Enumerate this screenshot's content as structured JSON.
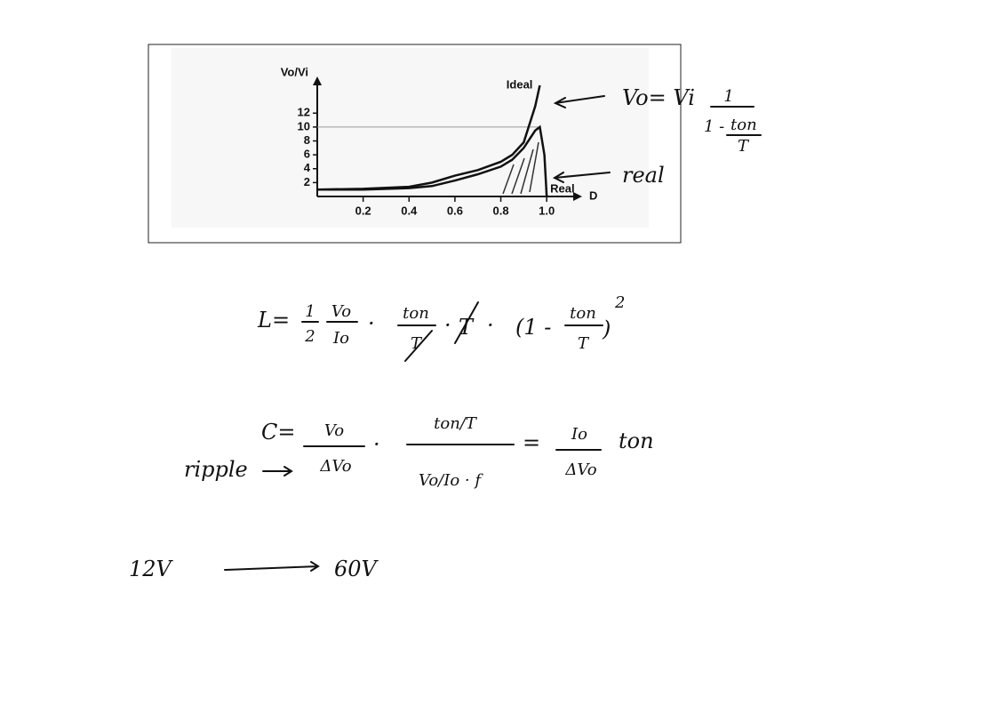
{
  "chart_data": {
    "type": "line",
    "xlabel": "D",
    "ylabel": "Vo/Vi",
    "x": [
      0,
      0.2,
      0.4,
      0.5,
      0.6,
      0.7,
      0.8,
      0.85,
      0.9,
      0.95,
      0.97,
      0.99,
      1.0
    ],
    "series": [
      {
        "name": "Ideal",
        "color": "#111111",
        "values": [
          1,
          1.1,
          1.4,
          2,
          3,
          3.8,
          5,
          6,
          7.8,
          13,
          16,
          null,
          null
        ]
      },
      {
        "name": "Real",
        "color": "#111111",
        "values": [
          1,
          1,
          1.2,
          1.5,
          2.3,
          3.2,
          4.3,
          5.3,
          7,
          9.5,
          10,
          6,
          0
        ]
      }
    ],
    "xlim": [
      0,
      1.1
    ],
    "ylim": [
      0,
      16
    ],
    "xticks": [
      0.2,
      0.4,
      0.6,
      0.8,
      {
        "value": 1,
        "label": "1.0"
      }
    ],
    "yticks": [
      2,
      4,
      6,
      8,
      10,
      12
    ],
    "hline": 10
  },
  "notes": {
    "ideal_formula": {
      "lhs": "Vo= Vi",
      "num": "1",
      "den_a": "1 -",
      "den_b": "ton",
      "den_c": "T"
    },
    "real_label": "real",
    "inductance": {
      "lhs": "L=",
      "half_num": "1",
      "half_den": "2",
      "f1_num": "Vo",
      "f1_den": "Io",
      "dot": "·",
      "f2_num": "ton",
      "f2_den": "T",
      "t": "T",
      "paren_a": "(1 -",
      "paren_num": "ton",
      "paren_den": "T",
      "paren_b": ")",
      "exp": "2"
    },
    "capacitance": {
      "ripple": "ripple",
      "lhs": "C=",
      "f1_num": "Vo",
      "f1_den": "ΔVo",
      "dot": "·",
      "f2_num": "ton/T",
      "f2_den": "Vo/Io · f",
      "eq": "=",
      "f3_num": "Io",
      "f3_den": "ΔVo",
      "ton": "ton"
    },
    "conversion": {
      "from": "12V",
      "to": "60V"
    }
  }
}
